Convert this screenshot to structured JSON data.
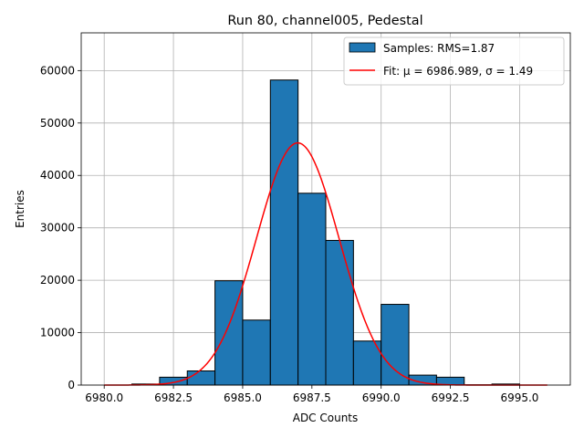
{
  "chart_data": {
    "type": "bar",
    "title": "Run 80, channel005, Pedestal",
    "xlabel": "ADC Counts",
    "ylabel": "Entries",
    "xlim": [
      6979.17,
      6996.83
    ],
    "ylim": [
      0,
      67200
    ],
    "grid": true,
    "legend_position": "top-right",
    "x_ticks": [
      6980.0,
      6982.5,
      6985.0,
      6987.5,
      6990.0,
      6992.5,
      6995.0
    ],
    "x_tick_labels": [
      "6980.0",
      "6982.5",
      "6985.0",
      "6987.5",
      "6990.0",
      "6992.5",
      "6995.0"
    ],
    "y_ticks": [
      0,
      10000,
      20000,
      30000,
      40000,
      50000,
      60000
    ],
    "y_tick_labels": [
      "0",
      "10000",
      "20000",
      "30000",
      "40000",
      "50000",
      "60000"
    ],
    "histogram": {
      "name": "Samples: RMS=1.87",
      "color": "#1f77b4",
      "edge_color": "#000000",
      "bins": [
        {
          "x0": 6980.0,
          "x1": 6981.0,
          "count": 0
        },
        {
          "x0": 6981.0,
          "x1": 6982.0,
          "count": 200
        },
        {
          "x0": 6982.0,
          "x1": 6983.0,
          "count": 1500
        },
        {
          "x0": 6983.0,
          "x1": 6984.0,
          "count": 2700
        },
        {
          "x0": 6984.0,
          "x1": 6985.0,
          "count": 19900
        },
        {
          "x0": 6985.0,
          "x1": 6986.0,
          "count": 12400
        },
        {
          "x0": 6986.0,
          "x1": 6987.0,
          "count": 58200
        },
        {
          "x0": 6987.0,
          "x1": 6988.0,
          "count": 36600
        },
        {
          "x0": 6988.0,
          "x1": 6989.0,
          "count": 27600
        },
        {
          "x0": 6989.0,
          "x1": 6990.0,
          "count": 8400
        },
        {
          "x0": 6990.0,
          "x1": 6991.0,
          "count": 15400
        },
        {
          "x0": 6991.0,
          "x1": 6992.0,
          "count": 1900
        },
        {
          "x0": 6992.0,
          "x1": 6993.0,
          "count": 1500
        },
        {
          "x0": 6993.0,
          "x1": 6994.0,
          "count": 50
        },
        {
          "x0": 6994.0,
          "x1": 6995.0,
          "count": 200
        }
      ]
    },
    "fit": {
      "name": "Fit: μ = 6986.989, σ = 1.49",
      "color": "#ff0000",
      "mu": 6986.989,
      "sigma": 1.49,
      "amplitude": 46200,
      "x_range": [
        6980.0,
        6996.0
      ]
    }
  }
}
